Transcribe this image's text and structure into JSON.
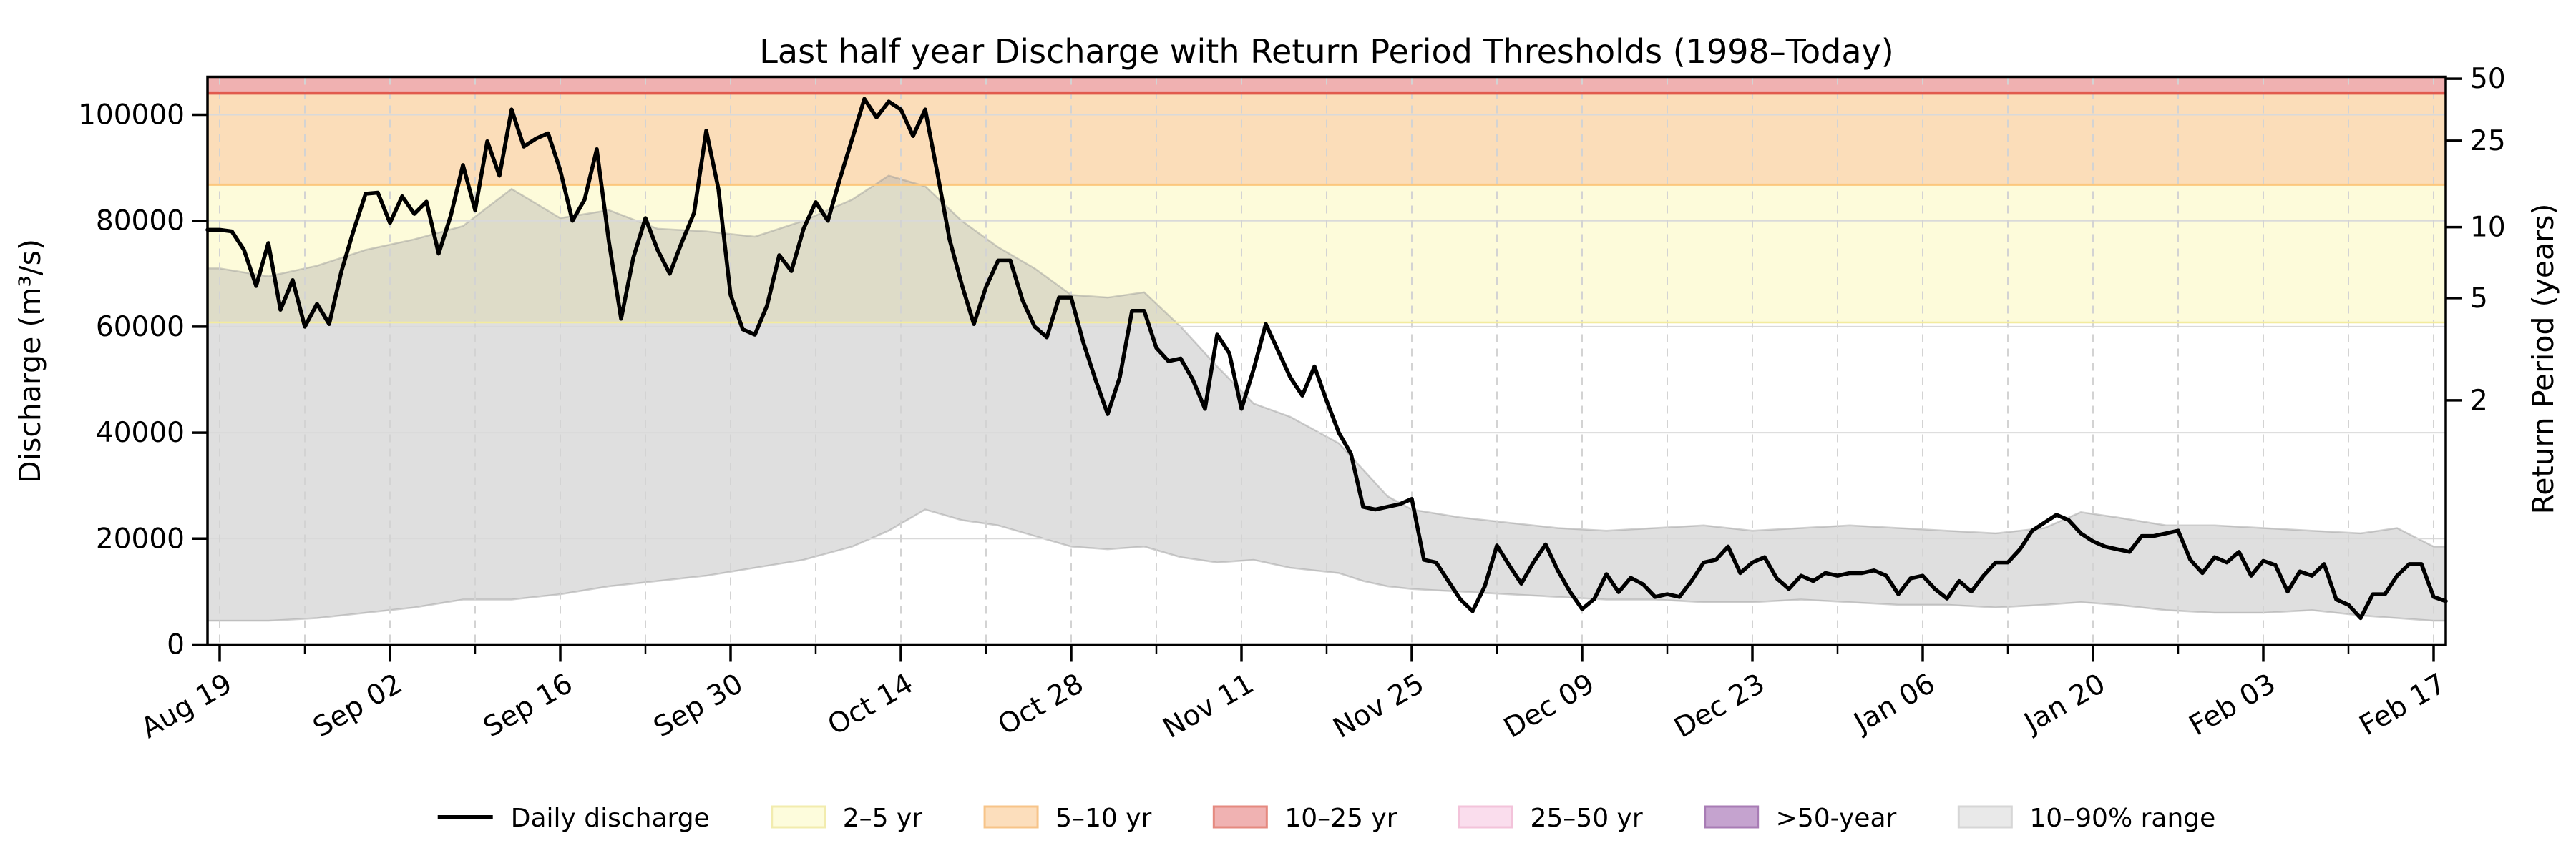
{
  "chart_data": {
    "type": "line",
    "title": "Last half year Discharge with Return Period Thresholds (1998–Today)",
    "x_axis": {
      "domain_days": [
        -1,
        183
      ],
      "major_ticks": [
        {
          "label": "Aug 19",
          "day": 0
        },
        {
          "label": "Sep 02",
          "day": 14
        },
        {
          "label": "Sep 16",
          "day": 28
        },
        {
          "label": "Sep 30",
          "day": 42
        },
        {
          "label": "Oct 14",
          "day": 56
        },
        {
          "label": "Oct 28",
          "day": 70
        },
        {
          "label": "Nov 11",
          "day": 84
        },
        {
          "label": "Nov 25",
          "day": 98
        },
        {
          "label": "Dec 09",
          "day": 112
        },
        {
          "label": "Dec 23",
          "day": 126
        },
        {
          "label": "Jan 06",
          "day": 140
        },
        {
          "label": "Jan 20",
          "day": 154
        },
        {
          "label": "Feb 03",
          "day": 168
        },
        {
          "label": "Feb 17",
          "day": 182
        }
      ],
      "minor_step_days": 7,
      "gridline_step_days": 7
    },
    "y_axis_left": {
      "label": "Discharge (m³/s)",
      "max": 107160,
      "ticks": [
        {
          "label": "0",
          "value": 0
        },
        {
          "label": "20000",
          "value": 20000
        },
        {
          "label": "40000",
          "value": 40000
        },
        {
          "label": "60000",
          "value": 60000
        },
        {
          "label": "80000",
          "value": 80000
        },
        {
          "label": "100000",
          "value": 100000
        }
      ]
    },
    "y_axis_right": {
      "label": "Return Period (years)",
      "ticks": [
        {
          "label": "50",
          "value": 106800
        },
        {
          "label": "25",
          "value": 95100
        },
        {
          "label": "10",
          "value": 78800
        },
        {
          "label": "5",
          "value": 65400
        },
        {
          "label": "2",
          "value": 46100
        }
      ]
    },
    "thresholds": [
      {
        "name": "2-year",
        "value": 60800,
        "color": "#f3eb9e",
        "width": 2.5
      },
      {
        "name": "5-year",
        "value": 86800,
        "color": "#fcc77d",
        "width": 3
      },
      {
        "name": "10-year",
        "value": 104100,
        "color": "#e15a4e",
        "width": 4.5
      }
    ],
    "bands": [
      {
        "name": "2–5 yr",
        "from": 60800,
        "to": 86800,
        "fill": "#fdfbda"
      },
      {
        "name": "5–10 yr",
        "from": 86800,
        "to": 104100,
        "fill": "#fbddb9"
      },
      {
        "name": "10–25 yr",
        "from": 104100,
        "to": 107160,
        "fill": "#f0b1b1"
      },
      {
        "name": "25–50 yr",
        "fill": "#fadded",
        "visible_in_plot": false
      },
      {
        "name": ">50-year",
        "fill": "#c5a3cf",
        "visible_in_plot": false
      }
    ],
    "percentile_band": {
      "label": "10–90% range",
      "fill": "rgba(170,170,170,0.38)",
      "edge": "rgba(150,150,150,0.45)",
      "days": [
        0,
        4,
        8,
        12,
        16,
        20,
        24,
        28,
        32,
        36,
        40,
        44,
        48,
        52,
        55,
        58,
        61,
        64,
        67,
        70,
        73,
        76,
        79,
        82,
        85,
        88,
        92,
        94,
        96,
        98,
        102,
        106,
        110,
        114,
        118,
        122,
        126,
        130,
        134,
        138,
        142,
        146,
        150,
        153,
        156,
        160,
        164,
        168,
        172,
        176,
        179,
        182
      ],
      "upper": [
        71000,
        69500,
        71500,
        74500,
        76500,
        79000,
        86000,
        80500,
        82000,
        78500,
        78000,
        77000,
        80000,
        84000,
        88500,
        86500,
        80000,
        75000,
        71000,
        66000,
        65500,
        66500,
        60000,
        52500,
        45500,
        43000,
        38000,
        33000,
        28000,
        25500,
        24000,
        23000,
        22000,
        21500,
        22000,
        22500,
        21500,
        22000,
        22500,
        22000,
        21500,
        21000,
        22000,
        25000,
        24000,
        22500,
        22500,
        22000,
        21500,
        21000,
        22000,
        18500
      ],
      "lower": [
        4500,
        4500,
        5000,
        6000,
        7000,
        8500,
        8500,
        9500,
        11000,
        12000,
        13000,
        14500,
        16000,
        18500,
        21500,
        25500,
        23500,
        22500,
        20500,
        18500,
        18000,
        18500,
        16500,
        15500,
        16000,
        14500,
        13500,
        12000,
        11000,
        10500,
        10000,
        9500,
        9000,
        8500,
        8500,
        8000,
        8000,
        8500,
        8000,
        7500,
        7500,
        7000,
        7500,
        8000,
        7500,
        6500,
        6000,
        6000,
        6500,
        5500,
        5000,
        4500
      ]
    },
    "series": [
      {
        "name": "Daily discharge",
        "color": "#000000",
        "start_label": "Aug 19",
        "values": [
          78300,
          78000,
          74500,
          67700,
          75800,
          63200,
          68800,
          60000,
          64300,
          60500,
          70400,
          78100,
          85100,
          85300,
          79600,
          84600,
          81300,
          83600,
          73800,
          81000,
          90500,
          82000,
          95000,
          88500,
          101000,
          94000,
          95500,
          96500,
          89500,
          80000,
          84000,
          93500,
          76000,
          61500,
          73000,
          80500,
          74500,
          70000,
          76000,
          81500,
          97000,
          86000,
          66000,
          59500,
          58500,
          64000,
          73500,
          70500,
          78500,
          83500,
          80000,
          88000,
          95500,
          103000,
          99500,
          102500,
          101000,
          96000,
          101000,
          89000,
          76500,
          68000,
          60500,
          67500,
          72500,
          72500,
          65000,
          60000,
          58000,
          65500,
          65500,
          57000,
          50000,
          43500,
          50500,
          63000,
          63000,
          56000,
          53500,
          54000,
          50000,
          44500,
          58500,
          55000,
          44500,
          52000,
          60500,
          55500,
          50500,
          47000,
          52500,
          46000,
          40000,
          36000,
          26000,
          25500,
          26000,
          26500,
          27500,
          16000,
          15500,
          12000,
          8500,
          6300,
          11000,
          18700,
          15000,
          11500,
          15500,
          18900,
          14000,
          10000,
          6700,
          8600,
          13300,
          9900,
          12600,
          11400,
          9000,
          9500,
          9000,
          12000,
          15500,
          16000,
          18500,
          13500,
          15500,
          16500,
          12500,
          10500,
          13000,
          12000,
          13500,
          13000,
          13500,
          13500,
          14000,
          13000,
          9500,
          12500,
          13000,
          10500,
          8700,
          12000,
          10000,
          13000,
          15500,
          15500,
          18000,
          21500,
          23000,
          24500,
          23500,
          21000,
          19500,
          18500,
          18000,
          17500,
          20500,
          20500,
          21000,
          21500,
          16000,
          13500,
          16500,
          15500,
          17500,
          13000,
          15800,
          15000,
          10000,
          13800,
          13000,
          15200,
          8500,
          7500,
          5000,
          9500,
          9500,
          13000,
          15200,
          15200,
          9000
        ]
      }
    ],
    "grid": {
      "horizontal": "solid",
      "vertical": "dashed",
      "color_h": "#d9d9d9",
      "color_v": "#d3d3d3"
    },
    "legend": {
      "position": "bottom-center",
      "items": [
        {
          "label": "Daily discharge",
          "swatch": "line",
          "fill": "#000000",
          "edge": "#000000"
        },
        {
          "label": "2–5 yr",
          "swatch": "patch",
          "fill": "#fdfcdc",
          "edge": "#f2ecae"
        },
        {
          "label": "5–10 yr",
          "swatch": "patch",
          "fill": "#fcdebc",
          "edge": "#f7c489"
        },
        {
          "label": "10–25 yr",
          "swatch": "patch",
          "fill": "#f0b2b2",
          "edge": "#e58a80"
        },
        {
          "label": "25–50 yr",
          "swatch": "patch",
          "fill": "#fadded",
          "edge": "#f3c3da"
        },
        {
          "label": ">50-year",
          "swatch": "patch",
          "fill": "#c5a3cf",
          "edge": "#a87cb5"
        },
        {
          "label": "10–90% range",
          "swatch": "patch",
          "fill": "#e9e9e9",
          "edge": "#d6d6d6"
        }
      ]
    }
  }
}
